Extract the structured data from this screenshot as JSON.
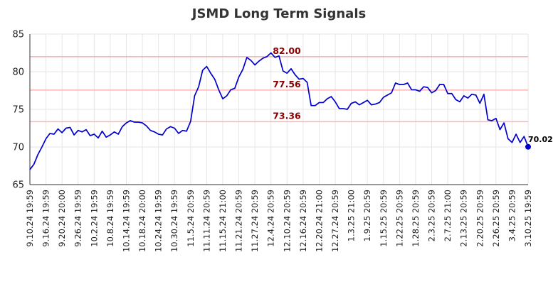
{
  "chart_data": {
    "type": "line",
    "title": "JSMD Long Term Signals",
    "xlabel": "",
    "ylabel": "",
    "ylim": [
      65,
      85
    ],
    "yticks": [
      65,
      70,
      75,
      80,
      85
    ],
    "grid": true,
    "x_tick_labels": [
      "9.10.24 19:59",
      "9.16.24 19:59",
      "9.20.24 20:00",
      "9.26.24 19:59",
      "10.2.24 19:59",
      "10.8.24 19:59",
      "10.14.24 19:59",
      "10.18.24 20:00",
      "10.24.24 19:59",
      "10.30.24 19:59",
      "11.5.24 20:59",
      "11.11.24 20:59",
      "11.15.24 21:00",
      "11.21.24 20:59",
      "11.27.24 20:59",
      "12.4.24 20:59",
      "12.10.24 20:59",
      "12.16.24 20:59",
      "12.20.24 21:00",
      "12.27.24 20:59",
      "1.3.25 21:00",
      "1.9.25 20:59",
      "1.15.25 20:59",
      "1.22.25 20:59",
      "1.28.25 20:59",
      "2.3.25 20:59",
      "2.7.25 21:00",
      "2.13.25 20:59",
      "2.20.25 20:59",
      "2.26.25 20:59",
      "3.4.25 20:59",
      "3.10.25 19:59"
    ],
    "series": [
      {
        "color": "#0000cc",
        "values": [
          67.0,
          67.7,
          69.0,
          70.0,
          71.1,
          71.8,
          71.7,
          72.4,
          71.9,
          72.5,
          72.6,
          71.6,
          72.2,
          72.0,
          72.3,
          71.5,
          71.7,
          71.2,
          72.1,
          71.3,
          71.6,
          72.0,
          71.7,
          72.7,
          73.2,
          73.5,
          73.3,
          73.3,
          73.2,
          72.8,
          72.2,
          72.0,
          71.7,
          71.6,
          72.4,
          72.7,
          72.5,
          71.8,
          72.2,
          72.1,
          73.4,
          76.8,
          78.0,
          80.2,
          80.7,
          79.8,
          79.0,
          77.6,
          76.4,
          76.8,
          77.6,
          77.8,
          79.3,
          80.3,
          81.9,
          81.5,
          80.9,
          81.4,
          81.8,
          82.0,
          82.5,
          81.9,
          82.1,
          80.1,
          79.8,
          80.4,
          79.6,
          79.0,
          79.1,
          78.6,
          75.5,
          75.5,
          75.9,
          75.9,
          76.4,
          76.7,
          76.0,
          75.1,
          75.1,
          75.0,
          75.8,
          76.0,
          75.6,
          75.9,
          76.2,
          75.6,
          75.7,
          75.9,
          76.6,
          76.9,
          77.2,
          78.5,
          78.3,
          78.3,
          78.5,
          77.6,
          77.6,
          77.4,
          78.0,
          77.9,
          77.2,
          77.5,
          78.3,
          78.3,
          77.1,
          77.1,
          76.3,
          76.0,
          76.8,
          76.5,
          77.0,
          76.9,
          75.8,
          77.0,
          73.6,
          73.5,
          73.8,
          72.3,
          73.2,
          71.1,
          70.6,
          71.7,
          70.6,
          71.4,
          70.02
        ]
      }
    ],
    "levels": [
      {
        "value": 82.0,
        "label": "82.00"
      },
      {
        "value": 77.56,
        "label": "77.56"
      },
      {
        "value": 73.36,
        "label": "73.36"
      }
    ],
    "last_value": {
      "value": 70.02,
      "label": "70.02"
    },
    "level_color": "#ffb3b3",
    "grid_color": "#e6e6e6"
  }
}
